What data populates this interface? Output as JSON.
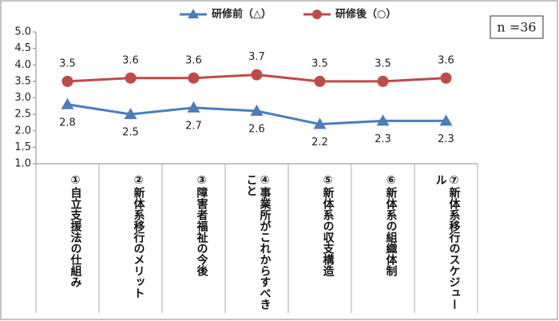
{
  "chart_data": {
    "type": "line",
    "categories": [
      "①自立支援法の仕組み",
      "②新体系移行のメリット",
      "③障害者福祉の今後",
      "④事業所がこれからすべきこと",
      "⑤新体系の収支構造",
      "⑥新体系の組織体制",
      "⑦新体系移行のスケジュール"
    ],
    "series": [
      {
        "name": "研修前（△）",
        "color": "#4a7ebb",
        "marker": "triangle",
        "values": [
          2.8,
          2.5,
          2.7,
          2.6,
          2.2,
          2.3,
          2.3
        ]
      },
      {
        "name": "研修後（○）",
        "color": "#be4b48",
        "marker": "circle",
        "values": [
          3.5,
          3.6,
          3.6,
          3.7,
          3.5,
          3.5,
          3.6
        ]
      }
    ],
    "ylim": [
      1,
      5
    ],
    "yticks": [
      {
        "value": 1,
        "label": "1.0"
      },
      {
        "value": 1.5,
        "label": "1.5"
      },
      {
        "value": 2,
        "label": "2.0"
      },
      {
        "value": 2.5,
        "label": "2.5"
      },
      {
        "value": 3,
        "label": "3.0"
      },
      {
        "value": 3.5,
        "label": "3.5"
      },
      {
        "value": 4,
        "label": "4.0"
      },
      {
        "value": 4.5,
        "label": "4.5"
      },
      {
        "value": 5,
        "label": "5.0"
      }
    ],
    "annotation": "n =36",
    "legend": "top"
  }
}
